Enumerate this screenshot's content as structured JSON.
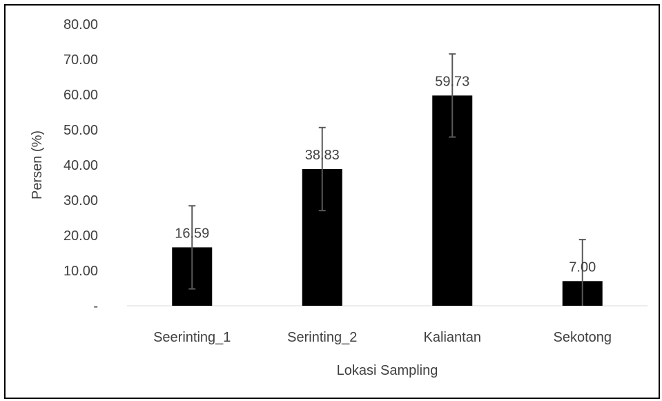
{
  "chart_data": {
    "type": "bar",
    "title": "",
    "xlabel": "Lokasi Sampling",
    "ylabel": "Persen (%)",
    "categories": [
      "Seerinting_1",
      "Serinting_2",
      "Kaliantan",
      "Sekotong"
    ],
    "values": [
      16.59,
      38.83,
      59.73,
      7.0
    ],
    "value_labels": [
      "16.59",
      "38.83",
      "59.73",
      "7.00"
    ],
    "error": [
      11.8,
      11.8,
      11.8,
      11.8
    ],
    "ylim": [
      0,
      80
    ],
    "y_ticks": [
      {
        "value": 0,
        "label": "-"
      },
      {
        "value": 10,
        "label": "10.00"
      },
      {
        "value": 20,
        "label": "20.00"
      },
      {
        "value": 30,
        "label": "30.00"
      },
      {
        "value": 40,
        "label": "40.00"
      },
      {
        "value": 50,
        "label": "50.00"
      },
      {
        "value": 60,
        "label": "60.00"
      },
      {
        "value": 70,
        "label": "70.00"
      },
      {
        "value": 80,
        "label": "80.00"
      }
    ],
    "grid": false,
    "legend": "none",
    "colors": {
      "bar": "#000000",
      "error_bar": "#595959",
      "text": "#404040",
      "axis": "#d9d9d9"
    }
  }
}
